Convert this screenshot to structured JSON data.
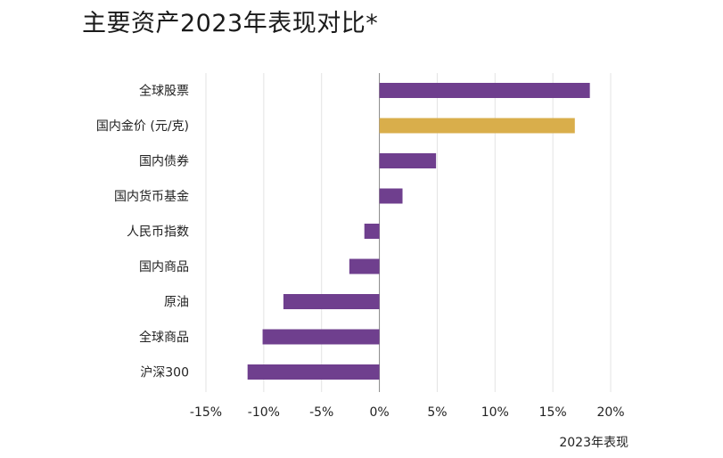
{
  "chart_data": {
    "type": "bar",
    "orientation": "horizontal",
    "title": "主要资产2023年表现对比*",
    "xlabel": "2023年表现",
    "ylabel": "",
    "xlim": [
      -15,
      20
    ],
    "x_ticks": [
      -15,
      -10,
      -5,
      0,
      5,
      10,
      15,
      20
    ],
    "x_tick_labels": [
      "-15%",
      "-10%",
      "-5%",
      "0%",
      "5%",
      "10%",
      "15%",
      "20%"
    ],
    "grid": "vertical",
    "categories": [
      "全球股票",
      "国内金价 (元/克)",
      "国内债券",
      "国内货币基金",
      "人民币指数",
      "国内商品",
      "原油",
      "全球商品",
      "沪深300"
    ],
    "values": [
      18.2,
      16.9,
      4.9,
      2.0,
      -1.3,
      -2.6,
      -8.3,
      -10.1,
      -11.4
    ],
    "colors": [
      "#6f3f8e",
      "#d9ae4b",
      "#6f3f8e",
      "#6f3f8e",
      "#6f3f8e",
      "#6f3f8e",
      "#6f3f8e",
      "#6f3f8e",
      "#6f3f8e"
    ]
  }
}
